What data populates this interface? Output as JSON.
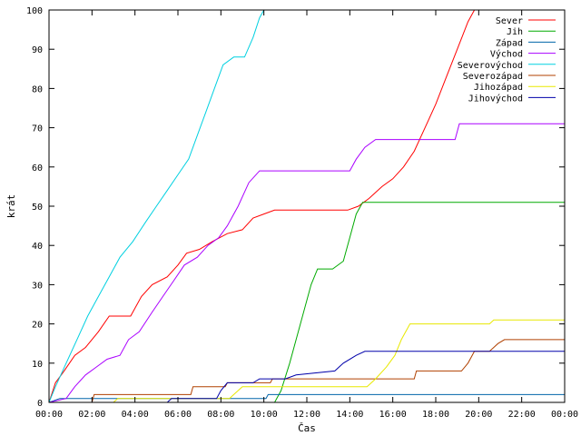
{
  "chart_data": {
    "type": "line",
    "xlabel": "Čas",
    "ylabel": "krát",
    "xlim": [
      0,
      24
    ],
    "ylim": [
      0,
      100
    ],
    "x_ticks": [
      {
        "value": 0,
        "label": "00:00"
      },
      {
        "value": 2,
        "label": "02:00"
      },
      {
        "value": 4,
        "label": "04:00"
      },
      {
        "value": 6,
        "label": "06:00"
      },
      {
        "value": 8,
        "label": "08:00"
      },
      {
        "value": 10,
        "label": "10:00"
      },
      {
        "value": 12,
        "label": "12:00"
      },
      {
        "value": 14,
        "label": "14:00"
      },
      {
        "value": 16,
        "label": "16:00"
      },
      {
        "value": 18,
        "label": "18:00"
      },
      {
        "value": 20,
        "label": "20:00"
      },
      {
        "value": 22,
        "label": "22:00"
      },
      {
        "value": 24,
        "label": "00:00"
      }
    ],
    "y_ticks": [
      {
        "value": 0,
        "label": "0"
      },
      {
        "value": 10,
        "label": "10"
      },
      {
        "value": 20,
        "label": "20"
      },
      {
        "value": 30,
        "label": "30"
      },
      {
        "value": 40,
        "label": "40"
      },
      {
        "value": 50,
        "label": "50"
      },
      {
        "value": 60,
        "label": "60"
      },
      {
        "value": 70,
        "label": "70"
      },
      {
        "value": 80,
        "label": "80"
      },
      {
        "value": 90,
        "label": "90"
      },
      {
        "value": 100,
        "label": "100"
      }
    ],
    "grid": false,
    "legend_position": "top-right",
    "series": [
      {
        "name": "Sever",
        "color": "#ff0000",
        "points": [
          [
            0,
            0
          ],
          [
            0.3,
            5
          ],
          [
            0.7,
            8
          ],
          [
            1.2,
            12
          ],
          [
            1.7,
            14
          ],
          [
            2.3,
            18
          ],
          [
            2.8,
            22
          ],
          [
            3.8,
            22
          ],
          [
            4.3,
            27
          ],
          [
            4.8,
            30
          ],
          [
            5.5,
            32
          ],
          [
            6.0,
            35
          ],
          [
            6.4,
            38
          ],
          [
            7.0,
            39
          ],
          [
            7.6,
            41
          ],
          [
            8.3,
            43
          ],
          [
            9.0,
            44
          ],
          [
            9.5,
            47
          ],
          [
            10.0,
            48
          ],
          [
            10.5,
            49
          ],
          [
            13.9,
            49
          ],
          [
            14.4,
            50
          ],
          [
            14.9,
            52
          ],
          [
            15.5,
            55
          ],
          [
            16.0,
            57
          ],
          [
            16.5,
            60
          ],
          [
            17.0,
            64
          ],
          [
            17.5,
            70
          ],
          [
            18.0,
            76
          ],
          [
            18.5,
            83
          ],
          [
            19.0,
            90
          ],
          [
            19.5,
            97
          ],
          [
            19.8,
            100
          ]
        ]
      },
      {
        "name": "Jih",
        "color": "#00aa00",
        "points": [
          [
            0,
            0
          ],
          [
            10.5,
            0
          ],
          [
            10.8,
            3
          ],
          [
            11.2,
            10
          ],
          [
            11.7,
            20
          ],
          [
            12.2,
            30
          ],
          [
            12.5,
            34
          ],
          [
            13.2,
            34
          ],
          [
            13.7,
            36
          ],
          [
            14.0,
            42
          ],
          [
            14.3,
            48
          ],
          [
            14.6,
            51
          ],
          [
            24,
            51
          ]
        ]
      },
      {
        "name": "Západ",
        "color": "#0066aa",
        "points": [
          [
            0,
            0
          ],
          [
            0.5,
            1
          ],
          [
            10.1,
            1
          ],
          [
            10.2,
            2
          ],
          [
            24,
            2
          ]
        ]
      },
      {
        "name": "Východ",
        "color": "#aa00ff",
        "points": [
          [
            0,
            0
          ],
          [
            0.8,
            1
          ],
          [
            1.2,
            4
          ],
          [
            1.7,
            7
          ],
          [
            2.2,
            9
          ],
          [
            2.7,
            11
          ],
          [
            3.3,
            12
          ],
          [
            3.7,
            16
          ],
          [
            4.2,
            18
          ],
          [
            4.8,
            23
          ],
          [
            5.3,
            27
          ],
          [
            5.8,
            31
          ],
          [
            6.3,
            35
          ],
          [
            6.9,
            37
          ],
          [
            7.4,
            40
          ],
          [
            7.9,
            42
          ],
          [
            8.3,
            45
          ],
          [
            8.8,
            50
          ],
          [
            9.3,
            56
          ],
          [
            9.8,
            59
          ],
          [
            14.0,
            59
          ],
          [
            14.3,
            62
          ],
          [
            14.7,
            65
          ],
          [
            15.2,
            67
          ],
          [
            18.9,
            67
          ],
          [
            19.1,
            71
          ],
          [
            24,
            71
          ]
        ]
      },
      {
        "name": "Severovýchod",
        "color": "#00d0e0",
        "points": [
          [
            0,
            0
          ],
          [
            0.3,
            4
          ],
          [
            0.8,
            10
          ],
          [
            1.3,
            16
          ],
          [
            1.8,
            22
          ],
          [
            2.3,
            27
          ],
          [
            2.8,
            32
          ],
          [
            3.3,
            37
          ],
          [
            3.9,
            41
          ],
          [
            4.5,
            46
          ],
          [
            5.0,
            50
          ],
          [
            5.5,
            54
          ],
          [
            6.0,
            58
          ],
          [
            6.5,
            62
          ],
          [
            6.9,
            68
          ],
          [
            7.3,
            74
          ],
          [
            7.7,
            80
          ],
          [
            8.1,
            86
          ],
          [
            8.6,
            88
          ],
          [
            9.1,
            88
          ],
          [
            9.5,
            93
          ],
          [
            9.8,
            98
          ],
          [
            10.0,
            100
          ]
        ]
      },
      {
        "name": "Severozápad",
        "color": "#b04000",
        "points": [
          [
            0,
            0
          ],
          [
            2.0,
            0
          ],
          [
            2.1,
            2
          ],
          [
            6.6,
            2
          ],
          [
            6.7,
            4
          ],
          [
            8.2,
            4
          ],
          [
            8.3,
            5
          ],
          [
            10.3,
            5
          ],
          [
            10.4,
            6
          ],
          [
            17.0,
            6
          ],
          [
            17.1,
            8
          ],
          [
            19.2,
            8
          ],
          [
            19.5,
            10
          ],
          [
            19.8,
            13
          ],
          [
            20.5,
            13
          ],
          [
            20.9,
            15
          ],
          [
            21.2,
            16
          ],
          [
            24,
            16
          ]
        ]
      },
      {
        "name": "Jihozápad",
        "color": "#e8e800",
        "points": [
          [
            0,
            0
          ],
          [
            3.0,
            0
          ],
          [
            3.2,
            1
          ],
          [
            8.4,
            1
          ],
          [
            8.6,
            2
          ],
          [
            8.8,
            3
          ],
          [
            9.0,
            4
          ],
          [
            14.8,
            4
          ],
          [
            15.2,
            6
          ],
          [
            15.7,
            9
          ],
          [
            16.1,
            12
          ],
          [
            16.4,
            16
          ],
          [
            16.8,
            20
          ],
          [
            20.5,
            20
          ],
          [
            20.7,
            21
          ],
          [
            24,
            21
          ]
        ]
      },
      {
        "name": "Jihovýchod",
        "color": "#0000aa",
        "points": [
          [
            0,
            0
          ],
          [
            5.5,
            0
          ],
          [
            5.7,
            1
          ],
          [
            7.8,
            1
          ],
          [
            8.0,
            3
          ],
          [
            8.3,
            5
          ],
          [
            9.5,
            5
          ],
          [
            9.8,
            6
          ],
          [
            11.0,
            6
          ],
          [
            11.5,
            7
          ],
          [
            13.3,
            8
          ],
          [
            13.7,
            10
          ],
          [
            14.3,
            12
          ],
          [
            14.7,
            13
          ],
          [
            24,
            13
          ]
        ]
      }
    ]
  }
}
